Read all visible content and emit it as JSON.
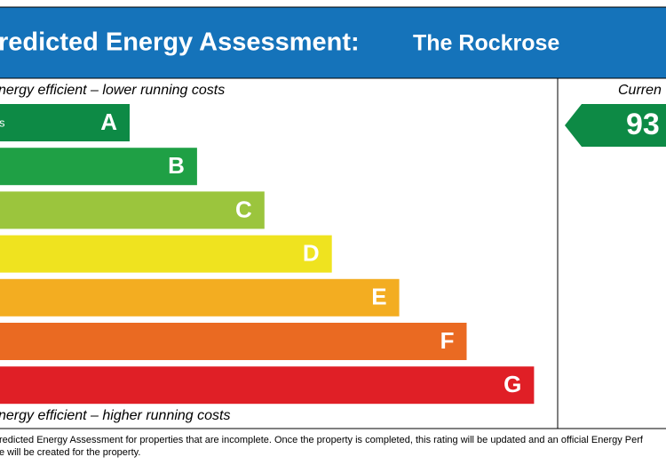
{
  "header": {
    "title": "redicted Energy Assessment:",
    "property": "The Rockrose"
  },
  "top_note": "nergy efficient – lower running costs",
  "bottom_note": "nergy efficient – higher running costs",
  "bands": [
    {
      "letter": "A",
      "range": "s",
      "color": "#0d8a45"
    },
    {
      "letter": "B",
      "color": "#1fa045"
    },
    {
      "letter": "C",
      "color": "#9bc53d"
    },
    {
      "letter": "D",
      "color": "#efe31f"
    },
    {
      "letter": "E",
      "color": "#f3ad21"
    },
    {
      "letter": "F",
      "color": "#ea6a22"
    },
    {
      "letter": "G",
      "color": "#e01f26"
    }
  ],
  "current": {
    "heading": "Curren",
    "value": "93",
    "color": "#0d8a45"
  },
  "footer": [
    "redicted Energy Assessment for properties that are incomplete. Once the property is completed, this rating will be updated and an official Energy Perf",
    "e will be created for the property."
  ]
}
